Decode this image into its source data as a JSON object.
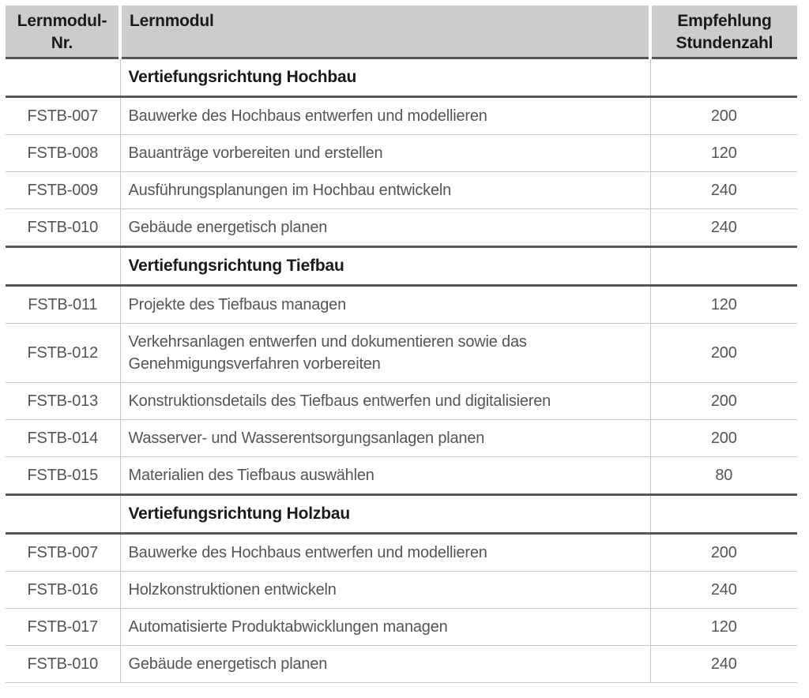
{
  "colors": {
    "header_bg": "#cccccc",
    "header_text": "#1a1a1a",
    "section_text": "#1a1a1a",
    "body_text": "#555555",
    "dark_line": "#565656",
    "light_line": "#c6c6c6",
    "page_bg": "#ffffff"
  },
  "table": {
    "columns": [
      {
        "label": "Lernmodul-\nNr."
      },
      {
        "label": "Lernmodul"
      },
      {
        "label": "Empfehlung\nStundenzahl"
      }
    ],
    "sections": [
      {
        "title": "Vertiefungsrichtung Hochbau",
        "rows": [
          {
            "nr": "FSTB-007",
            "modul": "Bauwerke des Hochbaus entwerfen und modellieren",
            "stunden": "200"
          },
          {
            "nr": "FSTB-008",
            "modul": "Bauanträge vorbereiten und erstellen",
            "stunden": "120"
          },
          {
            "nr": "FSTB-009",
            "modul": "Ausführungsplanungen im Hochbau entwickeln",
            "stunden": "240"
          },
          {
            "nr": "FSTB-010",
            "modul": "Gebäude energetisch planen",
            "stunden": "240"
          }
        ]
      },
      {
        "title": "Vertiefungsrichtung Tiefbau",
        "rows": [
          {
            "nr": "FSTB-011",
            "modul": "Projekte des Tiefbaus managen",
            "stunden": "120"
          },
          {
            "nr": "FSTB-012",
            "modul": "Verkehrsanlagen entwerfen und dokumentieren sowie das Genehmigungsverfahren vorbereiten",
            "stunden": "200"
          },
          {
            "nr": "FSTB-013",
            "modul": "Konstruktionsdetails des Tiefbaus entwerfen und digitalisieren",
            "stunden": "200"
          },
          {
            "nr": "FSTB-014",
            "modul": "Wasserver- und Wasserentsorgungsanlagen planen",
            "stunden": "200"
          },
          {
            "nr": "FSTB-015",
            "modul": "Materialien des Tiefbaus auswählen",
            "stunden": "80"
          }
        ]
      },
      {
        "title": "Vertiefungsrichtung Holzbau",
        "rows": [
          {
            "nr": "FSTB-007",
            "modul": "Bauwerke des Hochbaus entwerfen und modellieren",
            "stunden": "200"
          },
          {
            "nr": "FSTB-016",
            "modul": "Holzkonstruktionen entwickeln",
            "stunden": "240"
          },
          {
            "nr": "FSTB-017",
            "modul": "Automatisierte Produktabwicklungen managen",
            "stunden": "120"
          },
          {
            "nr": "FSTB-010",
            "modul": "Gebäude energetisch planen",
            "stunden": "240"
          }
        ]
      }
    ]
  }
}
